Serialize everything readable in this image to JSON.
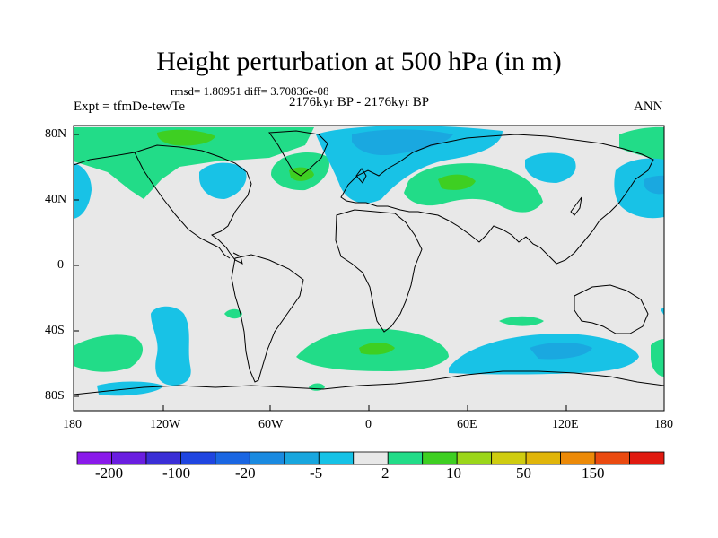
{
  "title": "Height perturbation at 500 hPa (in m)",
  "stats": "rmsd= 1.80951 diff= 3.70836e-08",
  "period": "2176kyr BP - 2176kyr BP",
  "experiment": "Expt = tfmDe-tewTe",
  "season": "ANN",
  "lat_labels": [
    "80N",
    "40N",
    "0",
    "40S",
    "80S"
  ],
  "lon_labels": [
    "180",
    "120W",
    "60W",
    "0",
    "60E",
    "120E",
    "180"
  ],
  "colorbar": {
    "labels": [
      "-200",
      "-100",
      "-20",
      "-5",
      "2",
      "10",
      "50",
      "150"
    ],
    "colors": [
      "#8a1aea",
      "#6a1ee0",
      "#3a2ed6",
      "#1f45e0",
      "#1a66e2",
      "#1a8ae0",
      "#18a6de",
      "#15c2e6",
      "#e8e8e8",
      "#22dc88",
      "#3ecf22",
      "#9bd61a",
      "#cfcc10",
      "#e0b50a",
      "#ec8a08",
      "#ea4a10",
      "#e01a10"
    ]
  },
  "fill_colors": {
    "background": "#e8e8e8",
    "pos_light": "#22dc88",
    "pos_strong": "#3ecf22",
    "neg_light": "#18c2e6",
    "neg_strong": "#1aa8e0"
  }
}
